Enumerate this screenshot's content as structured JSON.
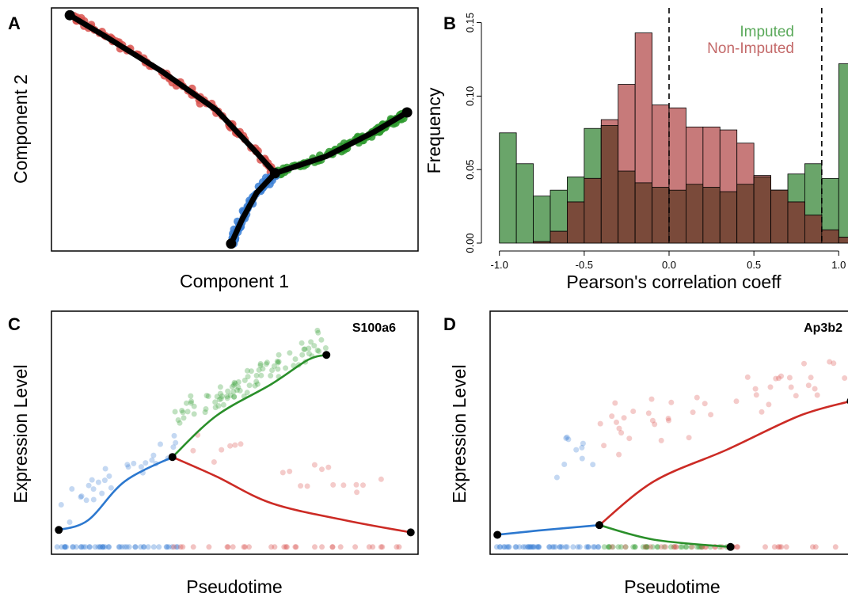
{
  "panels": {
    "A": {
      "letter": "A"
    },
    "B": {
      "letter": "B"
    },
    "C": {
      "letter": "C"
    },
    "D": {
      "letter": "D"
    }
  },
  "colors": {
    "red": "#d9534f",
    "green": "#2e9a2e",
    "blue": "#3a7fd5",
    "hist_green": "#6aa56a",
    "hist_red": "#c77a7a",
    "hist_overlap": "#7a4a3a",
    "legend_green": "#5aa95a",
    "legend_red": "#c46a6a"
  },
  "chart_data": [
    {
      "panel": "A",
      "type": "scatter",
      "title": "",
      "xlabel": "Component 1",
      "ylabel": "Component 2",
      "xlim": [
        0,
        1
      ],
      "ylim": [
        0,
        1
      ],
      "trajectory_nodes": [
        [
          0.05,
          0.97
        ],
        [
          0.61,
          0.32
        ],
        [
          0.97,
          0.57
        ],
        [
          0.49,
          0.03
        ]
      ],
      "branches": [
        {
          "name": "",
          "color": "red",
          "path": [
            [
              0.05,
              0.97
            ],
            [
              0.15,
              0.88
            ],
            [
              0.3,
              0.74
            ],
            [
              0.45,
              0.58
            ],
            [
              0.55,
              0.42
            ],
            [
              0.61,
              0.32
            ]
          ]
        },
        {
          "name": "",
          "color": "green",
          "path": [
            [
              0.61,
              0.32
            ],
            [
              0.75,
              0.39
            ],
            [
              0.88,
              0.49
            ],
            [
              0.97,
              0.57
            ]
          ]
        },
        {
          "name": "",
          "color": "blue",
          "path": [
            [
              0.61,
              0.32
            ],
            [
              0.56,
              0.24
            ],
            [
              0.52,
              0.13
            ],
            [
              0.49,
              0.03
            ]
          ]
        }
      ]
    },
    {
      "panel": "B",
      "type": "bar",
      "title": "",
      "xlabel": "Pearson's correlation coeff",
      "ylabel": "Frequency",
      "xlim": [
        -1.05,
        1.05
      ],
      "ylim": [
        0,
        0.16
      ],
      "xticks": [
        "-1.0",
        "-0.5",
        "0.0",
        "0.5",
        "1.0"
      ],
      "yticks": [
        "0.00",
        "0.05",
        "0.10",
        "0.15"
      ],
      "bin_start": -1.0,
      "bin_width": 0.1,
      "series": [
        {
          "name": "Imputed",
          "values": [
            0.075,
            0.054,
            0.032,
            0.036,
            0.045,
            0.078,
            0.08,
            0.049,
            0.041,
            0.038,
            0.036,
            0.04,
            0.038,
            0.035,
            0.04,
            0.045,
            0.036,
            0.047,
            0.054,
            0.044,
            0.122
          ]
        },
        {
          "name": "Non-Imputed",
          "values": [
            0.0,
            0.0,
            0.001,
            0.008,
            0.028,
            0.044,
            0.084,
            0.108,
            0.143,
            0.094,
            0.092,
            0.079,
            0.079,
            0.077,
            0.068,
            0.046,
            0.036,
            0.028,
            0.019,
            0.009,
            0.004
          ]
        }
      ],
      "vlines": [
        0.0,
        0.9
      ]
    },
    {
      "panel": "C",
      "type": "scatter",
      "title": "S100a6",
      "xlabel": "Pseudotime",
      "ylabel": "Expression Level",
      "xlim": [
        0,
        1
      ],
      "ylim": [
        0,
        1
      ],
      "curves": [
        {
          "name": "",
          "color": "blue",
          "points": [
            [
              0.02,
              0.1
            ],
            [
              0.1,
              0.14
            ],
            [
              0.2,
              0.3
            ],
            [
              0.33,
              0.4
            ]
          ]
        },
        {
          "name": "",
          "color": "green",
          "points": [
            [
              0.33,
              0.4
            ],
            [
              0.45,
              0.57
            ],
            [
              0.6,
              0.7
            ],
            [
              0.7,
              0.8
            ],
            [
              0.75,
              0.82
            ]
          ]
        },
        {
          "name": "",
          "color": "red",
          "points": [
            [
              0.33,
              0.4
            ],
            [
              0.45,
              0.32
            ],
            [
              0.6,
              0.21
            ],
            [
              0.8,
              0.14
            ],
            [
              0.98,
              0.09
            ]
          ]
        }
      ],
      "nodes": [
        [
          0.02,
          0.1
        ],
        [
          0.33,
          0.4
        ],
        [
          0.75,
          0.82
        ],
        [
          0.98,
          0.09
        ]
      ]
    },
    {
      "panel": "D",
      "type": "scatter",
      "title": "Ap3b2",
      "xlabel": "Pseudotime",
      "ylabel": "Expression Level",
      "xlim": [
        0,
        1
      ],
      "ylim": [
        0,
        1
      ],
      "curves": [
        {
          "name": "",
          "color": "blue",
          "points": [
            [
              0.02,
              0.08
            ],
            [
              0.15,
              0.1
            ],
            [
              0.3,
              0.12
            ]
          ]
        },
        {
          "name": "",
          "color": "green",
          "points": [
            [
              0.3,
              0.12
            ],
            [
              0.45,
              0.06
            ],
            [
              0.66,
              0.03
            ]
          ]
        },
        {
          "name": "",
          "color": "red",
          "points": [
            [
              0.3,
              0.12
            ],
            [
              0.45,
              0.3
            ],
            [
              0.65,
              0.43
            ],
            [
              0.85,
              0.57
            ],
            [
              0.99,
              0.63
            ]
          ]
        }
      ],
      "nodes": [
        [
          0.02,
          0.08
        ],
        [
          0.3,
          0.12
        ],
        [
          0.66,
          0.03
        ],
        [
          0.99,
          0.63
        ]
      ]
    }
  ]
}
